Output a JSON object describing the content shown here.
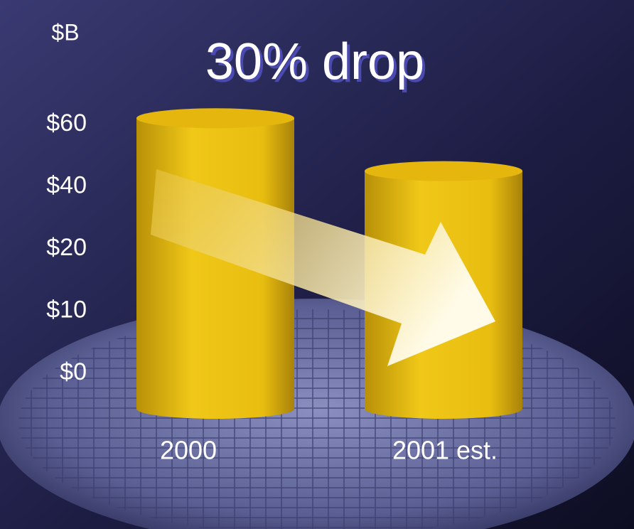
{
  "chart_data": {
    "type": "bar",
    "title": "30% drop",
    "y_label": "$B",
    "categories": [
      "2000",
      "2001 est."
    ],
    "values": [
      62,
      45
    ],
    "color": "#e8bd10",
    "ylim": [
      0,
      60
    ],
    "yticks": [
      {
        "value": 0,
        "label": "$0"
      },
      {
        "value": 10,
        "label": "$10"
      },
      {
        "value": 20,
        "label": "$20"
      },
      {
        "value": 40,
        "label": "$40"
      },
      {
        "value": 60,
        "label": "$60"
      }
    ],
    "grid": false
  }
}
